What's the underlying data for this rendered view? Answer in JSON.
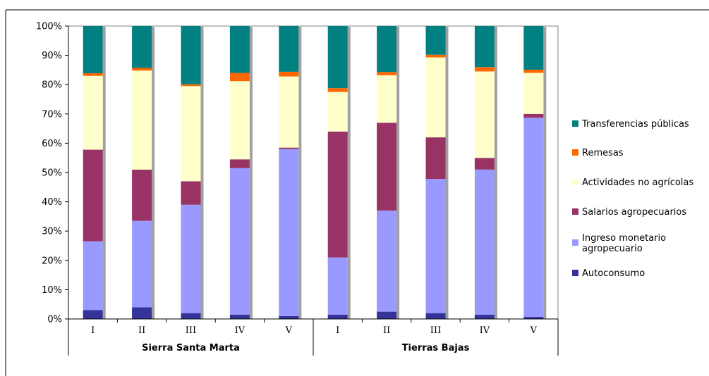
{
  "chart_data": {
    "type": "bar",
    "stacked": "percent",
    "categories": [
      "I",
      "II",
      "III",
      "IV",
      "V",
      "I",
      "II",
      "III",
      "IV",
      "V"
    ],
    "groups": [
      {
        "label": "Sierra Santa Marta",
        "span": [
          0,
          4
        ]
      },
      {
        "label": "Tierras Bajas",
        "span": [
          5,
          9
        ]
      }
    ],
    "series": [
      {
        "name": "Autoconsumo",
        "color": "#333399",
        "values": [
          3,
          4,
          2,
          1.5,
          1,
          1.5,
          2.5,
          2,
          1.5,
          0.7
        ]
      },
      {
        "name": "Ingreso monetario agropecuario",
        "color": "#9999FF",
        "values": [
          23.5,
          29.5,
          37,
          50,
          57,
          19.5,
          34.5,
          45.8,
          49.5,
          68
        ]
      },
      {
        "name": "Salarios agropecuarios",
        "color": "#993366",
        "values": [
          31.3,
          17.5,
          8,
          3,
          0.5,
          43,
          30,
          14.2,
          4,
          1.3
        ]
      },
      {
        "name": "Actividades no agrícolas",
        "color": "#FFFFCC",
        "values": [
          25.2,
          33.8,
          32.5,
          26.7,
          24.3,
          13.5,
          16.2,
          27.3,
          29.5,
          14
        ]
      },
      {
        "name": "Remesas",
        "color": "#FF6600",
        "values": [
          0.9,
          0.9,
          0.6,
          2.8,
          1.6,
          1.3,
          1.1,
          0.9,
          1.5,
          1.1
        ]
      },
      {
        "name": "Transferencias públicas",
        "color": "#008080",
        "values": [
          16.1,
          14.3,
          19.9,
          16,
          15.6,
          21.2,
          15.7,
          9.8,
          14,
          14.9
        ]
      }
    ],
    "ylim": [
      0,
      100
    ],
    "yticks": [
      "0%",
      "10%",
      "20%",
      "30%",
      "40%",
      "50%",
      "60%",
      "70%",
      "80%",
      "90%",
      "100%"
    ],
    "grid": false,
    "legend_position": "right",
    "legend_order": [
      "Transferencias públicas",
      "Remesas",
      "Actividades no agrícolas",
      "Salarios agropecuarios",
      "Ingreso monetario agropecuario",
      "Autoconsumo"
    ]
  }
}
